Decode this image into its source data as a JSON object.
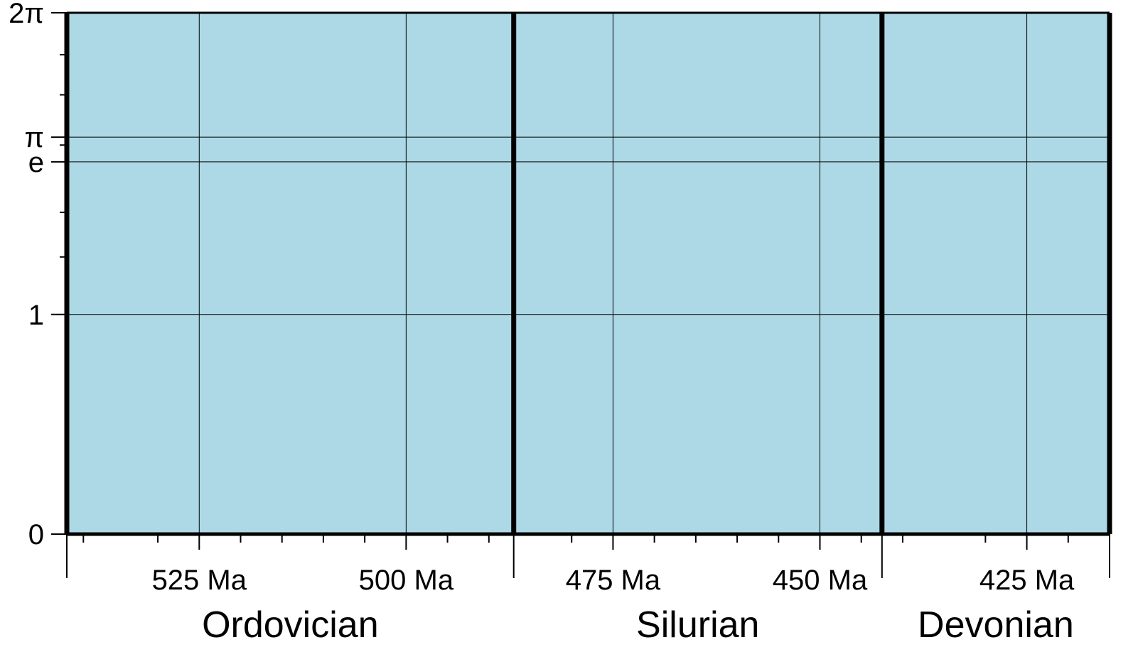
{
  "chart_data": {
    "type": "table",
    "xlim": [
      541,
      415
    ],
    "ylim": [
      0,
      6.283185307179586
    ],
    "grid": true,
    "background": "#add8e6",
    "line_color": "#000000",
    "y_ticks": [
      {
        "value": 0,
        "label": "0"
      },
      {
        "value": 1,
        "label": "1"
      },
      {
        "value": 2.718281828459045,
        "label": "e"
      },
      {
        "value": 3.141592653589793,
        "label": "π"
      },
      {
        "value": 6.283185307179586,
        "label": "2π"
      }
    ],
    "y_minor_ticks": [
      1.5,
      2,
      3,
      4,
      5
    ],
    "x_ticks": [
      {
        "value": 525,
        "label": "525 Ma"
      },
      {
        "value": 500,
        "label": "500 Ma"
      },
      {
        "value": 475,
        "label": "475 Ma"
      },
      {
        "value": 450,
        "label": "450 Ma"
      },
      {
        "value": 425,
        "label": "425 Ma"
      }
    ],
    "x_minor_ticks": [
      539,
      530,
      520,
      515,
      510,
      505,
      495,
      490,
      480,
      470,
      465,
      460,
      455,
      445,
      440,
      430,
      420
    ],
    "periods": [
      {
        "name": "Ordovician",
        "start": 541,
        "end": 487
      },
      {
        "name": "Silurian",
        "start": 487,
        "end": 442.5
      },
      {
        "name": "Devonian",
        "start": 442.5,
        "end": 415
      }
    ]
  }
}
